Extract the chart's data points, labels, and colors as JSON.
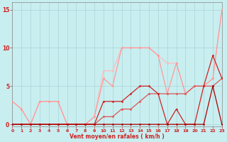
{
  "title": "",
  "xlabel": "Vent moyen/en rafales ( km/h )",
  "bg_color": "#c8eef0",
  "grid_color": "#b0d8da",
  "x_ticks": [
    0,
    1,
    2,
    3,
    4,
    5,
    6,
    7,
    8,
    9,
    10,
    11,
    12,
    13,
    14,
    15,
    16,
    17,
    18,
    19,
    20,
    21,
    22,
    23
  ],
  "y_ticks": [
    0,
    5,
    10,
    15
  ],
  "xlim": [
    0,
    23
  ],
  "ylim": [
    -0.3,
    16
  ],
  "lines": [
    {
      "x": [
        0,
        1,
        2,
        3,
        4,
        5,
        6,
        7,
        8,
        9,
        10,
        11,
        12,
        13,
        14,
        15,
        16,
        17,
        18,
        19,
        20,
        21,
        22,
        23
      ],
      "y": [
        3,
        2,
        0,
        3,
        3,
        3,
        0,
        0,
        0,
        1,
        7,
        7,
        10,
        10,
        10,
        10,
        9,
        8,
        8,
        4,
        5,
        5,
        6,
        15
      ],
      "color": "#ffbbbb",
      "lw": 0.9
    },
    {
      "x": [
        0,
        1,
        2,
        3,
        4,
        5,
        6,
        7,
        8,
        9,
        10,
        11,
        12,
        13,
        14,
        15,
        16,
        17,
        18,
        19,
        20,
        21,
        22,
        23
      ],
      "y": [
        3,
        2,
        0,
        3,
        3,
        3,
        0,
        0,
        0,
        1,
        6,
        5,
        10,
        10,
        10,
        10,
        9,
        4,
        8,
        4,
        5,
        5,
        6,
        15
      ],
      "color": "#ff9999",
      "lw": 0.9
    },
    {
      "x": [
        0,
        1,
        2,
        3,
        4,
        5,
        6,
        7,
        8,
        9,
        10,
        11,
        12,
        13,
        14,
        15,
        16,
        17,
        18,
        19,
        20,
        21,
        22,
        23
      ],
      "y": [
        0,
        0,
        0,
        0,
        0,
        0,
        0,
        0,
        0,
        0,
        1,
        1,
        2,
        2,
        3,
        4,
        4,
        4,
        4,
        4,
        5,
        5,
        5,
        6
      ],
      "color": "#dd5555",
      "lw": 0.9
    },
    {
      "x": [
        0,
        1,
        2,
        3,
        4,
        5,
        6,
        7,
        8,
        9,
        10,
        11,
        12,
        13,
        14,
        15,
        16,
        17,
        18,
        19,
        20,
        21,
        22,
        23
      ],
      "y": [
        0,
        0,
        0,
        0,
        0,
        0,
        0,
        0,
        0,
        0,
        3,
        3,
        3,
        4,
        5,
        5,
        4,
        0,
        2,
        0,
        0,
        5,
        9,
        6
      ],
      "color": "#cc2222",
      "lw": 0.9
    },
    {
      "x": [
        0,
        1,
        2,
        3,
        4,
        5,
        6,
        7,
        8,
        9,
        10,
        11,
        12,
        13,
        14,
        15,
        16,
        17,
        18,
        19,
        20,
        21,
        22,
        23
      ],
      "y": [
        0,
        0,
        0,
        0,
        0,
        0,
        0,
        0,
        0,
        0,
        0,
        0,
        0,
        0,
        0,
        0,
        0,
        0,
        0,
        0,
        0,
        0,
        5,
        0
      ],
      "color": "#aa0000",
      "lw": 0.9
    }
  ],
  "xlabel_color": "#cc2222",
  "tick_color": "#cc2222",
  "marker_size": 2
}
